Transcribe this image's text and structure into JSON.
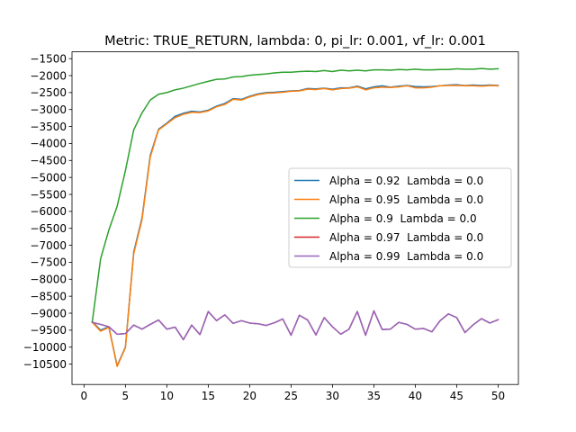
{
  "chart_data": {
    "type": "line",
    "title": "Metric: TRUE_RETURN, lambda: 0, pi_lr: 0.001, vf_lr: 0.001",
    "xlabel": "",
    "ylabel": "",
    "xlim": [
      -1.45,
      52.45
    ],
    "ylim": [
      -11100,
      -1300
    ],
    "xticks": [
      0,
      5,
      10,
      15,
      20,
      25,
      30,
      35,
      40,
      45,
      50
    ],
    "yticks": [
      -10500,
      -10000,
      -9500,
      -9000,
      -8500,
      -8000,
      -7500,
      -7000,
      -6500,
      -6000,
      -5500,
      -5000,
      -4500,
      -4000,
      -3500,
      -3000,
      -2500,
      -2000,
      -1500
    ],
    "grid": false,
    "legend_position": "center-right",
    "x": [
      1,
      2,
      3,
      4,
      5,
      6,
      7,
      8,
      9,
      10,
      11,
      12,
      13,
      14,
      15,
      16,
      17,
      18,
      19,
      20,
      21,
      22,
      23,
      24,
      25,
      26,
      27,
      28,
      29,
      30,
      31,
      32,
      33,
      34,
      35,
      36,
      37,
      38,
      39,
      40,
      41,
      42,
      43,
      44,
      45,
      46,
      47,
      48,
      49,
      50
    ],
    "series": [
      {
        "name": "Alpha = 0.92  Lambda = 0.0",
        "color": "#1f77b4",
        "values": [
          -9250,
          -9500,
          -9400,
          -10550,
          -10000,
          -7200,
          -6200,
          -4350,
          -3580,
          -3400,
          -3200,
          -3110,
          -3050,
          -3070,
          -3020,
          -2900,
          -2820,
          -2680,
          -2700,
          -2610,
          -2540,
          -2500,
          -2490,
          -2470,
          -2450,
          -2440,
          -2380,
          -2390,
          -2370,
          -2400,
          -2360,
          -2360,
          -2310,
          -2390,
          -2330,
          -2300,
          -2340,
          -2310,
          -2290,
          -2320,
          -2330,
          -2320,
          -2300,
          -2280,
          -2270,
          -2290,
          -2280,
          -2290,
          -2280,
          -2290
        ]
      },
      {
        "name": "Alpha = 0.95  Lambda = 0.0",
        "color": "#ff7f0e",
        "values": [
          -9270,
          -9530,
          -9420,
          -10570,
          -10020,
          -7250,
          -6250,
          -4400,
          -3600,
          -3420,
          -3240,
          -3140,
          -3080,
          -3090,
          -3040,
          -2920,
          -2850,
          -2700,
          -2720,
          -2630,
          -2560,
          -2520,
          -2510,
          -2490,
          -2460,
          -2450,
          -2400,
          -2410,
          -2380,
          -2420,
          -2380,
          -2370,
          -2330,
          -2420,
          -2360,
          -2340,
          -2350,
          -2330,
          -2300,
          -2360,
          -2360,
          -2340,
          -2300,
          -2290,
          -2290,
          -2300,
          -2300,
          -2310,
          -2290,
          -2300
        ]
      },
      {
        "name": "Alpha = 0.9  Lambda = 0.0",
        "color": "#2ca02c",
        "values": [
          -9250,
          -7400,
          -6550,
          -5850,
          -4800,
          -3600,
          -3100,
          -2720,
          -2550,
          -2500,
          -2420,
          -2370,
          -2300,
          -2230,
          -2170,
          -2110,
          -2100,
          -2040,
          -2030,
          -1990,
          -1970,
          -1950,
          -1920,
          -1900,
          -1900,
          -1880,
          -1870,
          -1880,
          -1850,
          -1880,
          -1840,
          -1860,
          -1840,
          -1860,
          -1830,
          -1830,
          -1840,
          -1820,
          -1830,
          -1810,
          -1830,
          -1830,
          -1820,
          -1820,
          -1800,
          -1810,
          -1810,
          -1790,
          -1810,
          -1800
        ]
      },
      {
        "name": "Alpha = 0.97  Lambda = 0.0",
        "color": "#d62728",
        "values": [
          -9270,
          -9330,
          -9400,
          -9620,
          -9600,
          -9350,
          -9470,
          -9330,
          -9200,
          -9470,
          -9410,
          -9780,
          -9350,
          -9630,
          -8950,
          -9220,
          -9050,
          -9300,
          -9220,
          -9290,
          -9310,
          -9360,
          -9280,
          -9170,
          -9650,
          -9060,
          -9200,
          -9640,
          -9130,
          -9400,
          -9620,
          -9470,
          -8950,
          -9650,
          -8930,
          -9480,
          -9470,
          -9270,
          -9330,
          -9470,
          -9450,
          -9550,
          -9220,
          -9020,
          -9130,
          -9570,
          -9340,
          -9160,
          -9290,
          -9190
        ]
      },
      {
        "name": "Alpha = 0.99  Lambda = 0.0",
        "color": "#9467bd",
        "values": [
          -9270,
          -9330,
          -9400,
          -9620,
          -9600,
          -9350,
          -9470,
          -9330,
          -9200,
          -9470,
          -9410,
          -9780,
          -9350,
          -9630,
          -8950,
          -9220,
          -9050,
          -9300,
          -9220,
          -9290,
          -9310,
          -9360,
          -9280,
          -9170,
          -9650,
          -9060,
          -9200,
          -9640,
          -9130,
          -9400,
          -9620,
          -9470,
          -8950,
          -9650,
          -8930,
          -9480,
          -9470,
          -9270,
          -9330,
          -9470,
          -9450,
          -9550,
          -9220,
          -9020,
          -9130,
          -9570,
          -9340,
          -9160,
          -9290,
          -9190
        ]
      }
    ]
  }
}
